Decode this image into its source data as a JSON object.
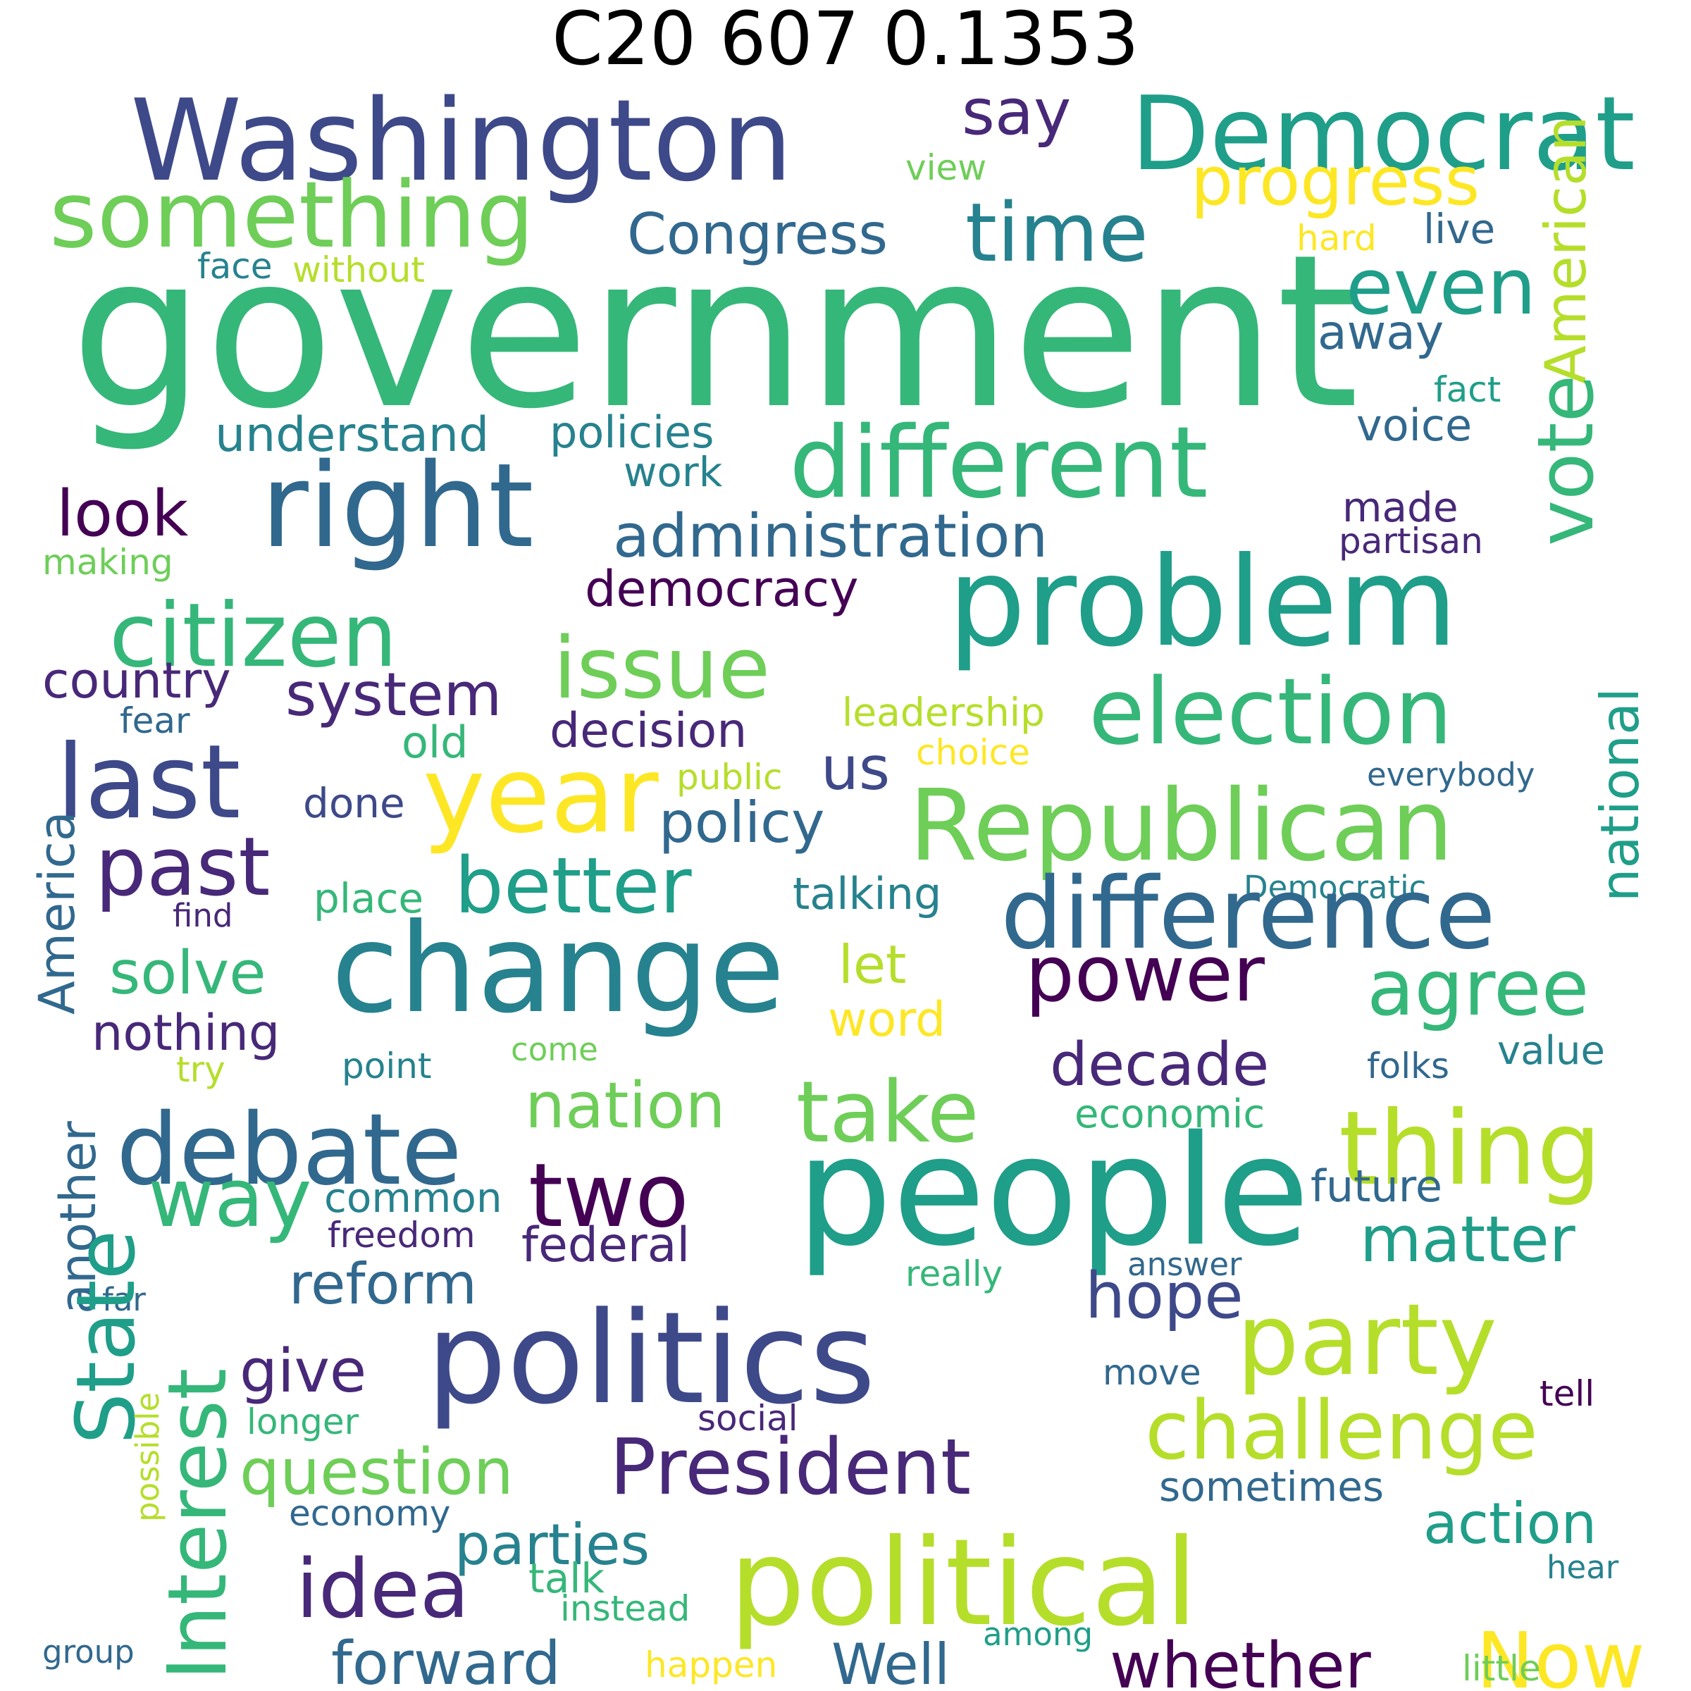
{
  "title": "C20 607 0.1353",
  "colors": {
    "dp": "#440154",
    "ip": "#482878",
    "bl": "#3e4989",
    "sb": "#31688e",
    "tl": "#26828e",
    "gt": "#1f9e89",
    "gn": "#35b779",
    "lg": "#6ece58",
    "yg": "#b5de2b",
    "yw": "#fde725"
  },
  "words": [
    {
      "text": "government",
      "color": "gn"
    },
    {
      "text": "Washington",
      "color": "bl"
    },
    {
      "text": "Democrat",
      "color": "gt"
    },
    {
      "text": "say",
      "color": "ip"
    },
    {
      "text": "American",
      "color": "yg"
    },
    {
      "text": "view",
      "color": "lg"
    },
    {
      "text": "progress",
      "color": "yw"
    },
    {
      "text": "something",
      "color": "lg"
    },
    {
      "text": "Congress",
      "color": "sb"
    },
    {
      "text": "time",
      "color": "tl"
    },
    {
      "text": "hard",
      "color": "yw"
    },
    {
      "text": "live",
      "color": "sb"
    },
    {
      "text": "face",
      "color": "tl"
    },
    {
      "text": "without",
      "color": "yg"
    },
    {
      "text": "even",
      "color": "gt"
    },
    {
      "text": "away",
      "color": "sb"
    },
    {
      "text": "vote",
      "color": "gn"
    },
    {
      "text": "fact",
      "color": "gt"
    },
    {
      "text": "understand",
      "color": "tl"
    },
    {
      "text": "policies",
      "color": "tl"
    },
    {
      "text": "voice",
      "color": "sb"
    },
    {
      "text": "right",
      "color": "sb"
    },
    {
      "text": "different",
      "color": "gn"
    },
    {
      "text": "work",
      "color": "tl"
    },
    {
      "text": "look",
      "color": "dp"
    },
    {
      "text": "made",
      "color": "ip"
    },
    {
      "text": "administration",
      "color": "sb"
    },
    {
      "text": "partisan",
      "color": "ip"
    },
    {
      "text": "making",
      "color": "lg"
    },
    {
      "text": "problem",
      "color": "gt"
    },
    {
      "text": "democracy",
      "color": "dp"
    },
    {
      "text": "citizen",
      "color": "gn"
    },
    {
      "text": "issue",
      "color": "lg"
    },
    {
      "text": "national",
      "color": "gt"
    },
    {
      "text": "country",
      "color": "ip"
    },
    {
      "text": "system",
      "color": "ip"
    },
    {
      "text": "election",
      "color": "gn"
    },
    {
      "text": "fear",
      "color": "sb"
    },
    {
      "text": "leadership",
      "color": "yg"
    },
    {
      "text": "decision",
      "color": "ip"
    },
    {
      "text": "old",
      "color": "gn"
    },
    {
      "text": "choice",
      "color": "yw"
    },
    {
      "text": "last",
      "color": "bl"
    },
    {
      "text": "year",
      "color": "yw"
    },
    {
      "text": "public",
      "color": "yg"
    },
    {
      "text": "us",
      "color": "bl"
    },
    {
      "text": "everybody",
      "color": "sb"
    },
    {
      "text": "Republican",
      "color": "lg"
    },
    {
      "text": "done",
      "color": "bl"
    },
    {
      "text": "policy",
      "color": "sb"
    },
    {
      "text": "America",
      "color": "sb"
    },
    {
      "text": "past",
      "color": "ip"
    },
    {
      "text": "place",
      "color": "gn"
    },
    {
      "text": "better",
      "color": "gt"
    },
    {
      "text": "talking",
      "color": "tl"
    },
    {
      "text": "Democratic",
      "color": "tl"
    },
    {
      "text": "find",
      "color": "ip"
    },
    {
      "text": "difference",
      "color": "sb"
    },
    {
      "text": "change",
      "color": "tl"
    },
    {
      "text": "solve",
      "color": "gn"
    },
    {
      "text": "let",
      "color": "yg"
    },
    {
      "text": "power",
      "color": "dp"
    },
    {
      "text": "agree",
      "color": "gn"
    },
    {
      "text": "nothing",
      "color": "ip"
    },
    {
      "text": "word",
      "color": "yw"
    },
    {
      "text": "another",
      "color": "sb"
    },
    {
      "text": "try",
      "color": "yg"
    },
    {
      "text": "come",
      "color": "lg"
    },
    {
      "text": "point",
      "color": "tl"
    },
    {
      "text": "decade",
      "color": "ip"
    },
    {
      "text": "folks",
      "color": "sb"
    },
    {
      "text": "value",
      "color": "tl"
    },
    {
      "text": "debate",
      "color": "sb"
    },
    {
      "text": "nation",
      "color": "lg"
    },
    {
      "text": "take",
      "color": "lg"
    },
    {
      "text": "economic",
      "color": "gn"
    },
    {
      "text": "thing",
      "color": "yg"
    },
    {
      "text": "way",
      "color": "gn"
    },
    {
      "text": "two",
      "color": "dp"
    },
    {
      "text": "people",
      "color": "gt"
    },
    {
      "text": "common",
      "color": "tl"
    },
    {
      "text": "freedom",
      "color": "ip"
    },
    {
      "text": "future",
      "color": "sb"
    },
    {
      "text": "Interest",
      "color": "gn"
    },
    {
      "text": "matter",
      "color": "gt"
    },
    {
      "text": "reform",
      "color": "sb"
    },
    {
      "text": "federal",
      "color": "ip"
    },
    {
      "text": "really",
      "color": "gn"
    },
    {
      "text": "answer",
      "color": "sb"
    },
    {
      "text": "far",
      "color": "sb"
    },
    {
      "text": "hope",
      "color": "bl"
    },
    {
      "text": "State",
      "color": "gt"
    },
    {
      "text": "give",
      "color": "ip"
    },
    {
      "text": "politics",
      "color": "bl"
    },
    {
      "text": "party",
      "color": "yg"
    },
    {
      "text": "possible",
      "color": "yg"
    },
    {
      "text": "move",
      "color": "sb"
    },
    {
      "text": "tell",
      "color": "dp"
    },
    {
      "text": "longer",
      "color": "gn"
    },
    {
      "text": "social",
      "color": "ip"
    },
    {
      "text": "question",
      "color": "lg"
    },
    {
      "text": "President",
      "color": "ip"
    },
    {
      "text": "challenge",
      "color": "yg"
    },
    {
      "text": "economy",
      "color": "sb"
    },
    {
      "text": "sometimes",
      "color": "sb"
    },
    {
      "text": "parties",
      "color": "tl"
    },
    {
      "text": "action",
      "color": "gt"
    },
    {
      "text": "idea",
      "color": "ip"
    },
    {
      "text": "talk",
      "color": "gn"
    },
    {
      "text": "political",
      "color": "yg"
    },
    {
      "text": "instead",
      "color": "gn"
    },
    {
      "text": "hear",
      "color": "tl"
    },
    {
      "text": "Now",
      "color": "yw"
    },
    {
      "text": "group",
      "color": "sb"
    },
    {
      "text": "forward",
      "color": "sb"
    },
    {
      "text": "Well",
      "color": "sb"
    },
    {
      "text": "among",
      "color": "gt"
    },
    {
      "text": "whether",
      "color": "dp"
    },
    {
      "text": "happen",
      "color": "yw"
    },
    {
      "text": "little",
      "color": "lg"
    }
  ]
}
